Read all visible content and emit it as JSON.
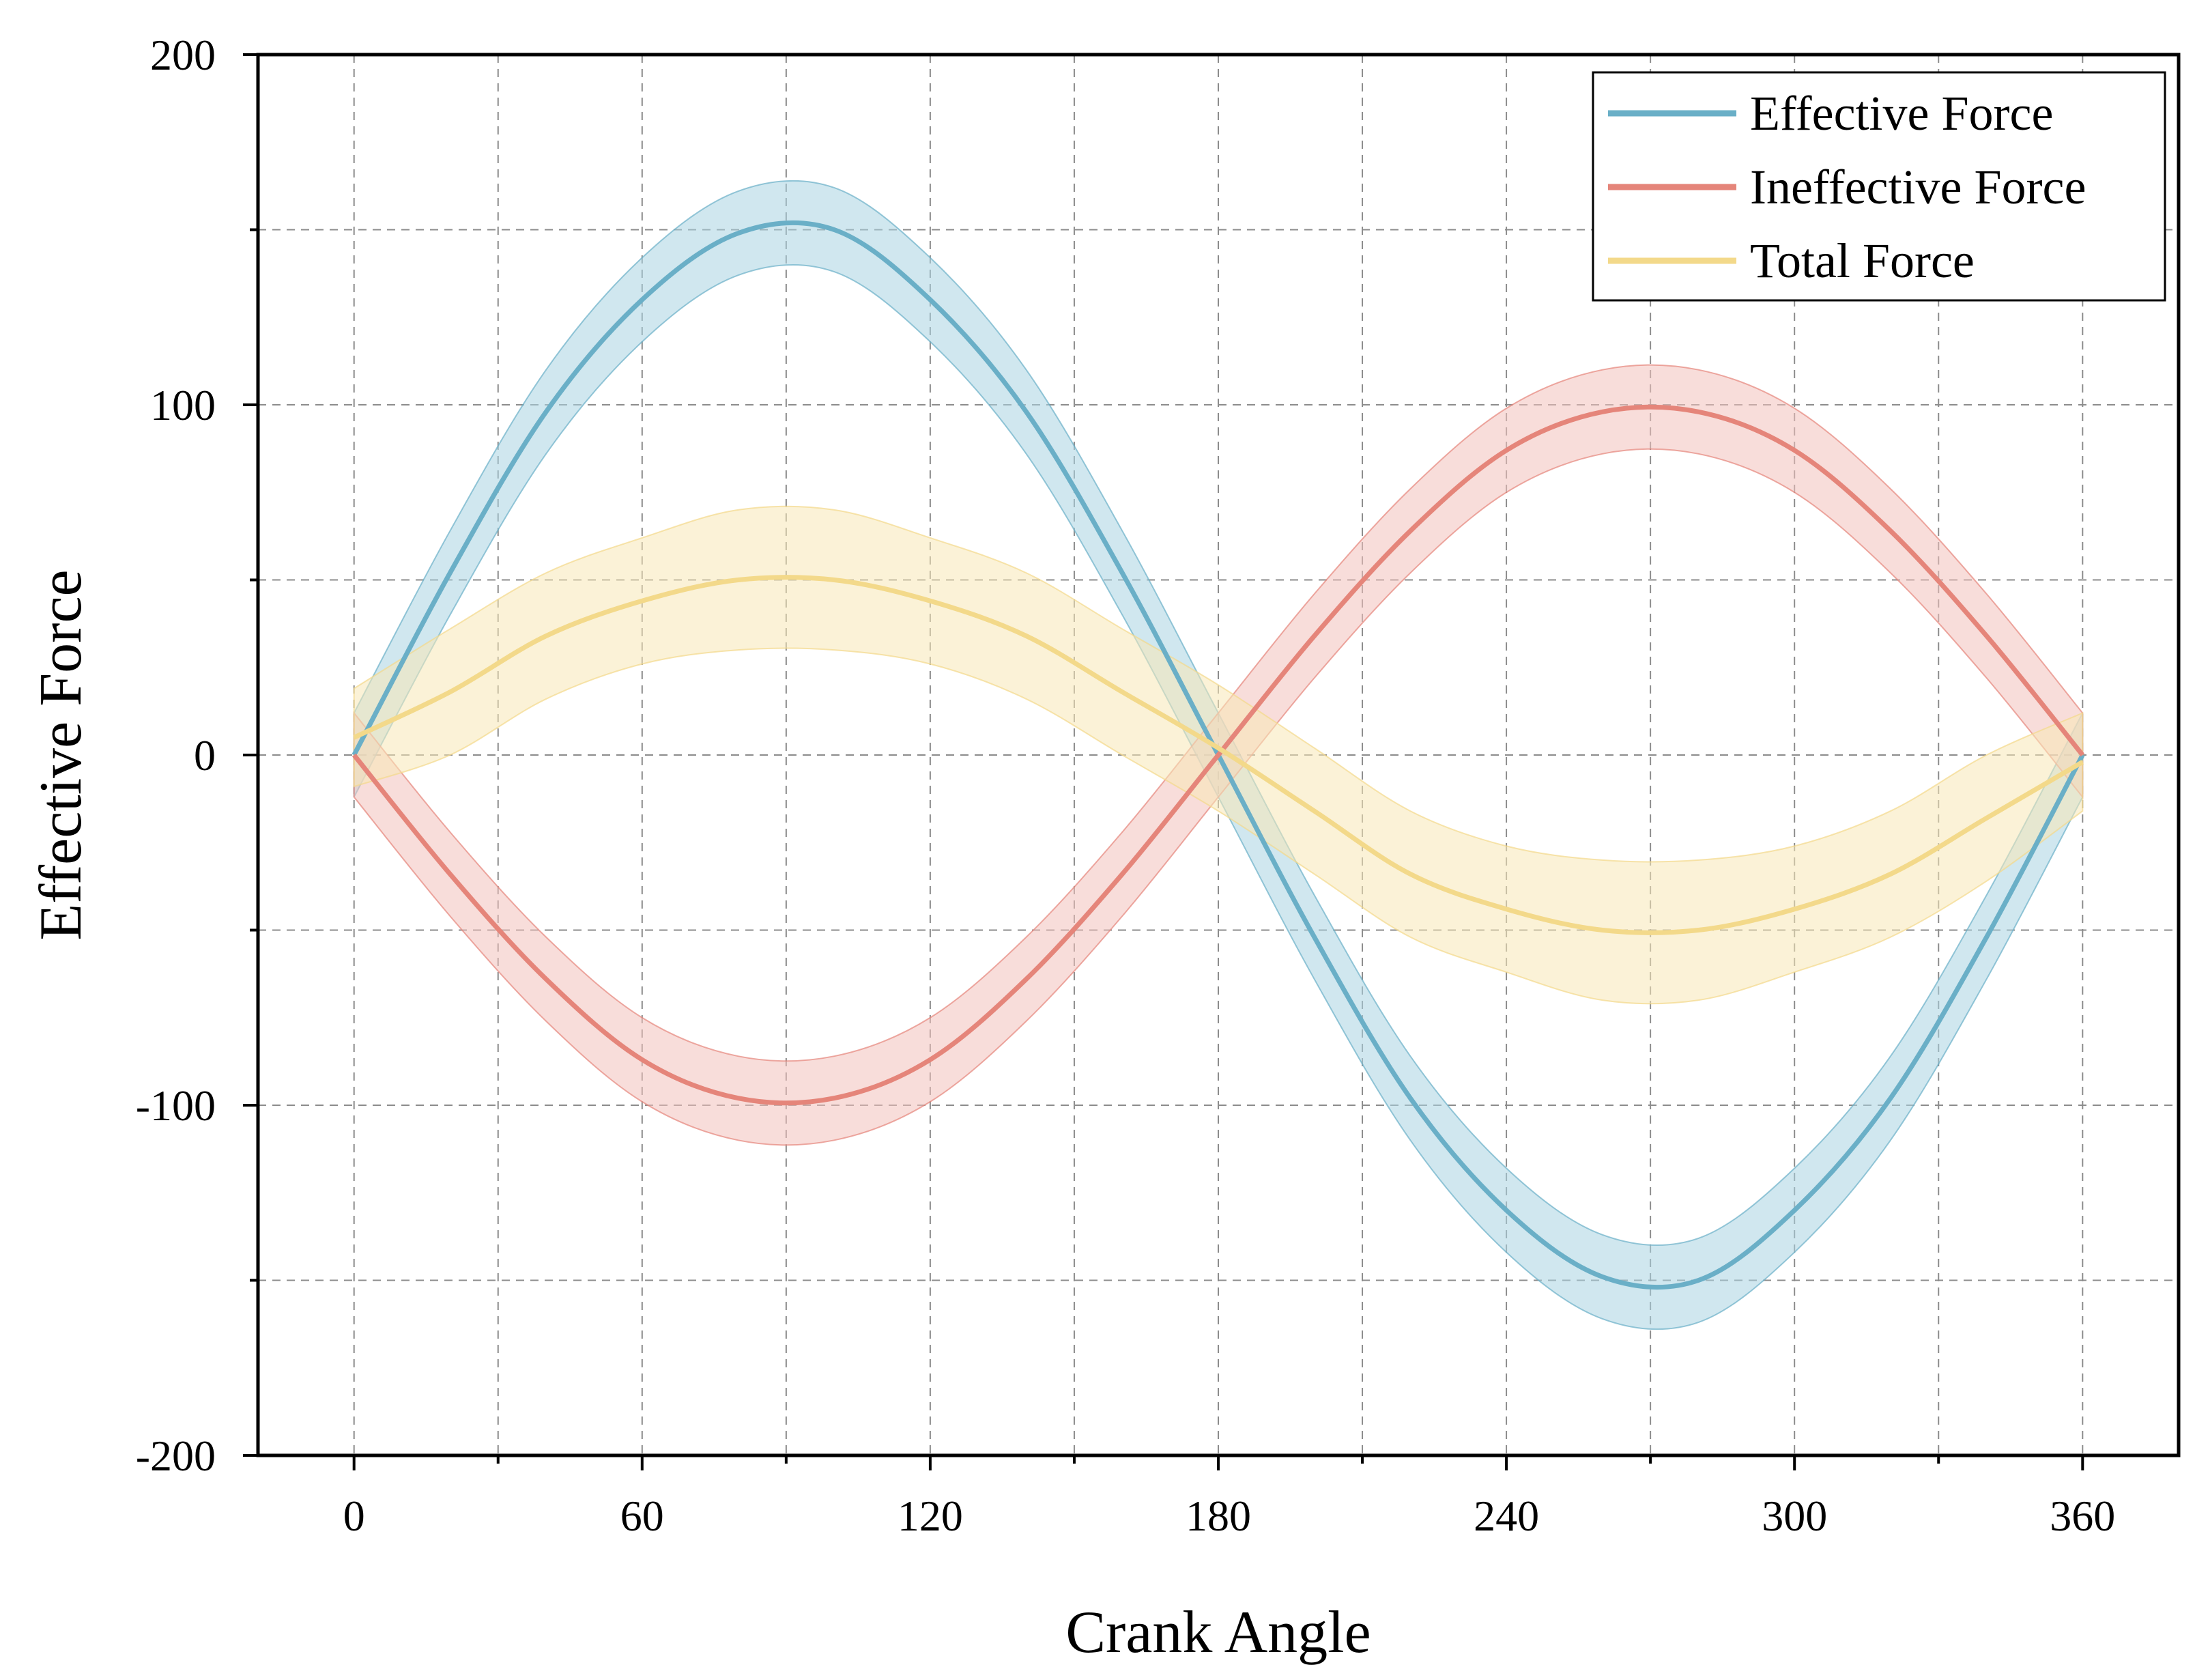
{
  "chart_data": {
    "type": "line",
    "xlabel": "Crank Angle",
    "ylabel": "Effective Force",
    "xlim": [
      -20,
      380
    ],
    "ylim": [
      -200,
      200
    ],
    "x_ticks": [
      0,
      60,
      120,
      180,
      240,
      300,
      360
    ],
    "x_minor_ticks": [
      30,
      90,
      150,
      210,
      270,
      330
    ],
    "y_ticks": [
      -200,
      -100,
      0,
      100,
      200
    ],
    "y_minor_ticks": [
      -150,
      -50,
      50,
      150
    ],
    "grid": true,
    "legend_position": "top-right",
    "x": [
      0,
      20,
      40,
      60,
      80,
      100,
      120,
      140,
      160,
      180,
      200,
      220,
      240,
      260,
      280,
      300,
      320,
      340,
      360
    ],
    "series": [
      {
        "name": "Effective Force",
        "color": "#6aafc7",
        "band_color": "#a9d3e2",
        "values": [
          0,
          52,
          98,
          130,
          149,
          150,
          130,
          98,
          52,
          0,
          -52,
          -98,
          -130,
          -149,
          -150,
          -130,
          -98,
          -52,
          0
        ],
        "band": [
          [
            -12,
            12
          ],
          [
            40,
            64
          ],
          [
            86,
            110
          ],
          [
            118,
            142
          ],
          [
            137,
            161
          ],
          [
            138,
            162
          ],
          [
            118,
            142
          ],
          [
            86,
            110
          ],
          [
            40,
            64
          ],
          [
            -12,
            12
          ],
          [
            -64,
            -40
          ],
          [
            -110,
            -86
          ],
          [
            -142,
            -118
          ],
          [
            -161,
            -137
          ],
          [
            -162,
            -138
          ],
          [
            -142,
            -118
          ],
          [
            -110,
            -86
          ],
          [
            -64,
            -40
          ],
          [
            -12,
            12
          ]
        ]
      },
      {
        "name": "Ineffective Force",
        "color": "#e5857a",
        "band_color": "#f3c1bb",
        "values": [
          0,
          -34,
          -64,
          -87,
          -98,
          -98,
          -87,
          -64,
          -34,
          0,
          34,
          64,
          87,
          98,
          98,
          87,
          64,
          34,
          0
        ],
        "band": [
          [
            -12,
            12
          ],
          [
            -46,
            -22
          ],
          [
            -76,
            -52
          ],
          [
            -99,
            -75
          ],
          [
            -110,
            -86
          ],
          [
            -110,
            -86
          ],
          [
            -99,
            -75
          ],
          [
            -76,
            -52
          ],
          [
            -46,
            -22
          ],
          [
            -12,
            12
          ],
          [
            22,
            46
          ],
          [
            52,
            76
          ],
          [
            75,
            99
          ],
          [
            86,
            110
          ],
          [
            86,
            110
          ],
          [
            75,
            99
          ],
          [
            52,
            76
          ],
          [
            22,
            46
          ],
          [
            -12,
            12
          ]
        ]
      },
      {
        "name": "Total Force",
        "color": "#f3d98a",
        "band_color": "#f7e8b6",
        "values": [
          5,
          18,
          34,
          44,
          50,
          50,
          44,
          34,
          18,
          2,
          -16,
          -34,
          -44,
          -50,
          -50,
          -44,
          -34,
          -18,
          -2
        ],
        "band": [
          [
            -9,
            19
          ],
          [
            0,
            36
          ],
          [
            16,
            52
          ],
          [
            26,
            62
          ],
          [
            30,
            70
          ],
          [
            30,
            70
          ],
          [
            26,
            62
          ],
          [
            16,
            52
          ],
          [
            0,
            36
          ],
          [
            -16,
            20
          ],
          [
            -34,
            2
          ],
          [
            -52,
            -16
          ],
          [
            -62,
            -26
          ],
          [
            -70,
            -30
          ],
          [
            -70,
            -30
          ],
          [
            -62,
            -26
          ],
          [
            -52,
            -16
          ],
          [
            -36,
            0
          ],
          [
            -16,
            12
          ]
        ]
      }
    ]
  }
}
